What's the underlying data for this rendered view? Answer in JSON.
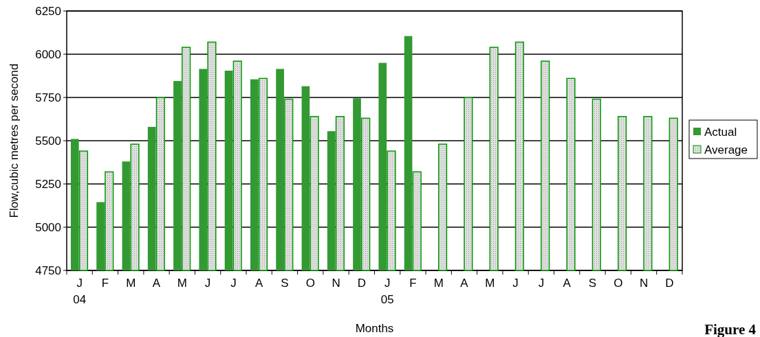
{
  "chart_data": {
    "type": "bar",
    "xlabel": "Months",
    "ylabel": "Flow,cubic metres per second",
    "categories": [
      "J\n04",
      "F",
      "M",
      "A",
      "M",
      "J",
      "J",
      "A",
      "S",
      "O",
      "N",
      "D",
      "J\n05",
      "F",
      "M",
      "A",
      "M",
      "J",
      "J",
      "A",
      "S",
      "O",
      "N",
      "D"
    ],
    "series": [
      {
        "name": "Actual",
        "color": "#339933",
        "values": [
          5510,
          5145,
          5380,
          5580,
          5845,
          5915,
          5905,
          5855,
          5915,
          5815,
          5555,
          5745,
          5950,
          6105,
          null,
          null,
          null,
          null,
          null,
          null,
          null,
          null,
          null,
          null
        ]
      },
      {
        "name": "Average",
        "color": "#009900",
        "values": [
          5440,
          5320,
          5480,
          5750,
          6040,
          6070,
          5960,
          5860,
          5740,
          5640,
          5640,
          5630,
          5440,
          5320,
          5480,
          5750,
          6040,
          6070,
          5960,
          5860,
          5740,
          5640,
          5640,
          5630
        ]
      }
    ],
    "ylim": [
      4750,
      6250
    ],
    "yticks": [
      4750,
      5000,
      5250,
      5500,
      5750,
      6000,
      6250
    ],
    "grid": "y",
    "legend": "right",
    "annotations": [
      "Figure 4"
    ]
  }
}
